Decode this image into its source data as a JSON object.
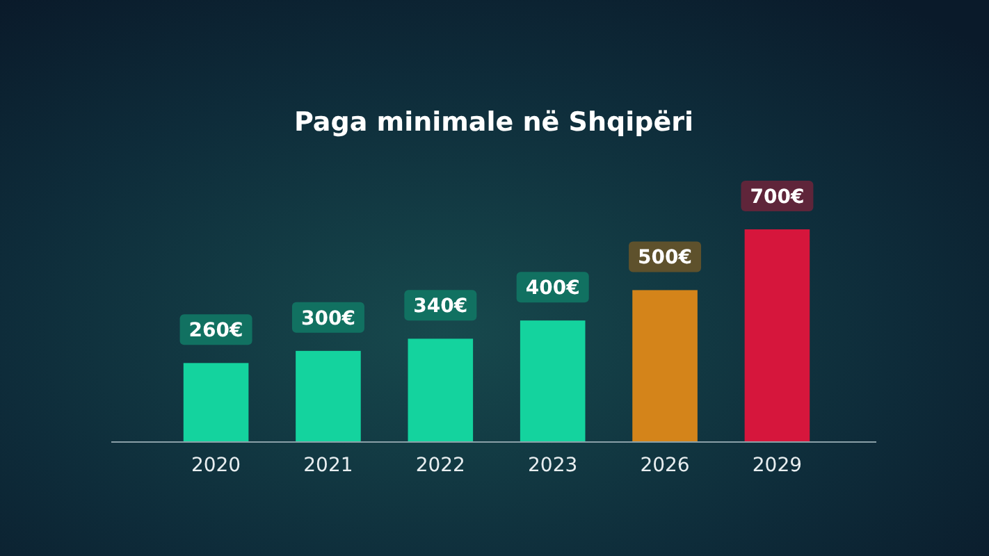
{
  "chart_data": {
    "type": "bar",
    "title": "Paga minimale në Shqipëri",
    "categories": [
      "2020",
      "2021",
      "2022",
      "2023",
      "2026",
      "2029"
    ],
    "values": [
      260,
      300,
      340,
      400,
      500,
      700
    ],
    "colors": [
      "#14d39e",
      "#14d39e",
      "#14d39e",
      "#14d39e",
      "#d4841a",
      "#d6163c"
    ],
    "value_labels": [
      "260€",
      "300€",
      "340€",
      "400€",
      "500€",
      "700€"
    ]
  }
}
